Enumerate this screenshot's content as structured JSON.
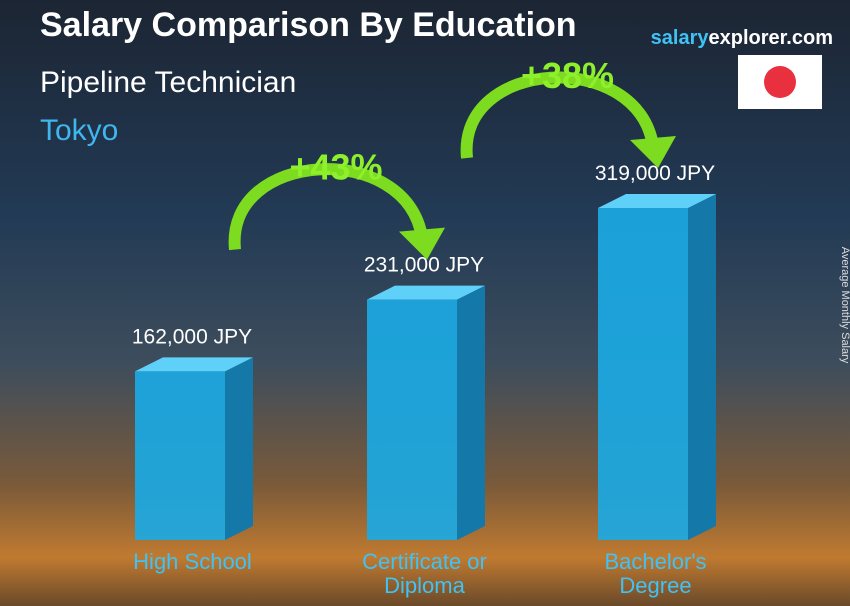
{
  "chart_data": {
    "type": "bar3d",
    "title": "Salary Comparison By Education",
    "subtitle": "Pipeline Technician",
    "location": "Tokyo",
    "brand": [
      "salary",
      "explorer.com"
    ],
    "y_label": "Average Monthly Salary",
    "categories": [
      "High School",
      "Certificate or Diploma",
      "Bachelor's Degree"
    ],
    "values": [
      162000,
      231000,
      319000
    ],
    "value_labels": [
      "162,000 JPY",
      "231,000 JPY",
      "319,000 JPY"
    ],
    "increases": [
      "+43%",
      "+38%"
    ],
    "color": "#1ba9e3"
  }
}
